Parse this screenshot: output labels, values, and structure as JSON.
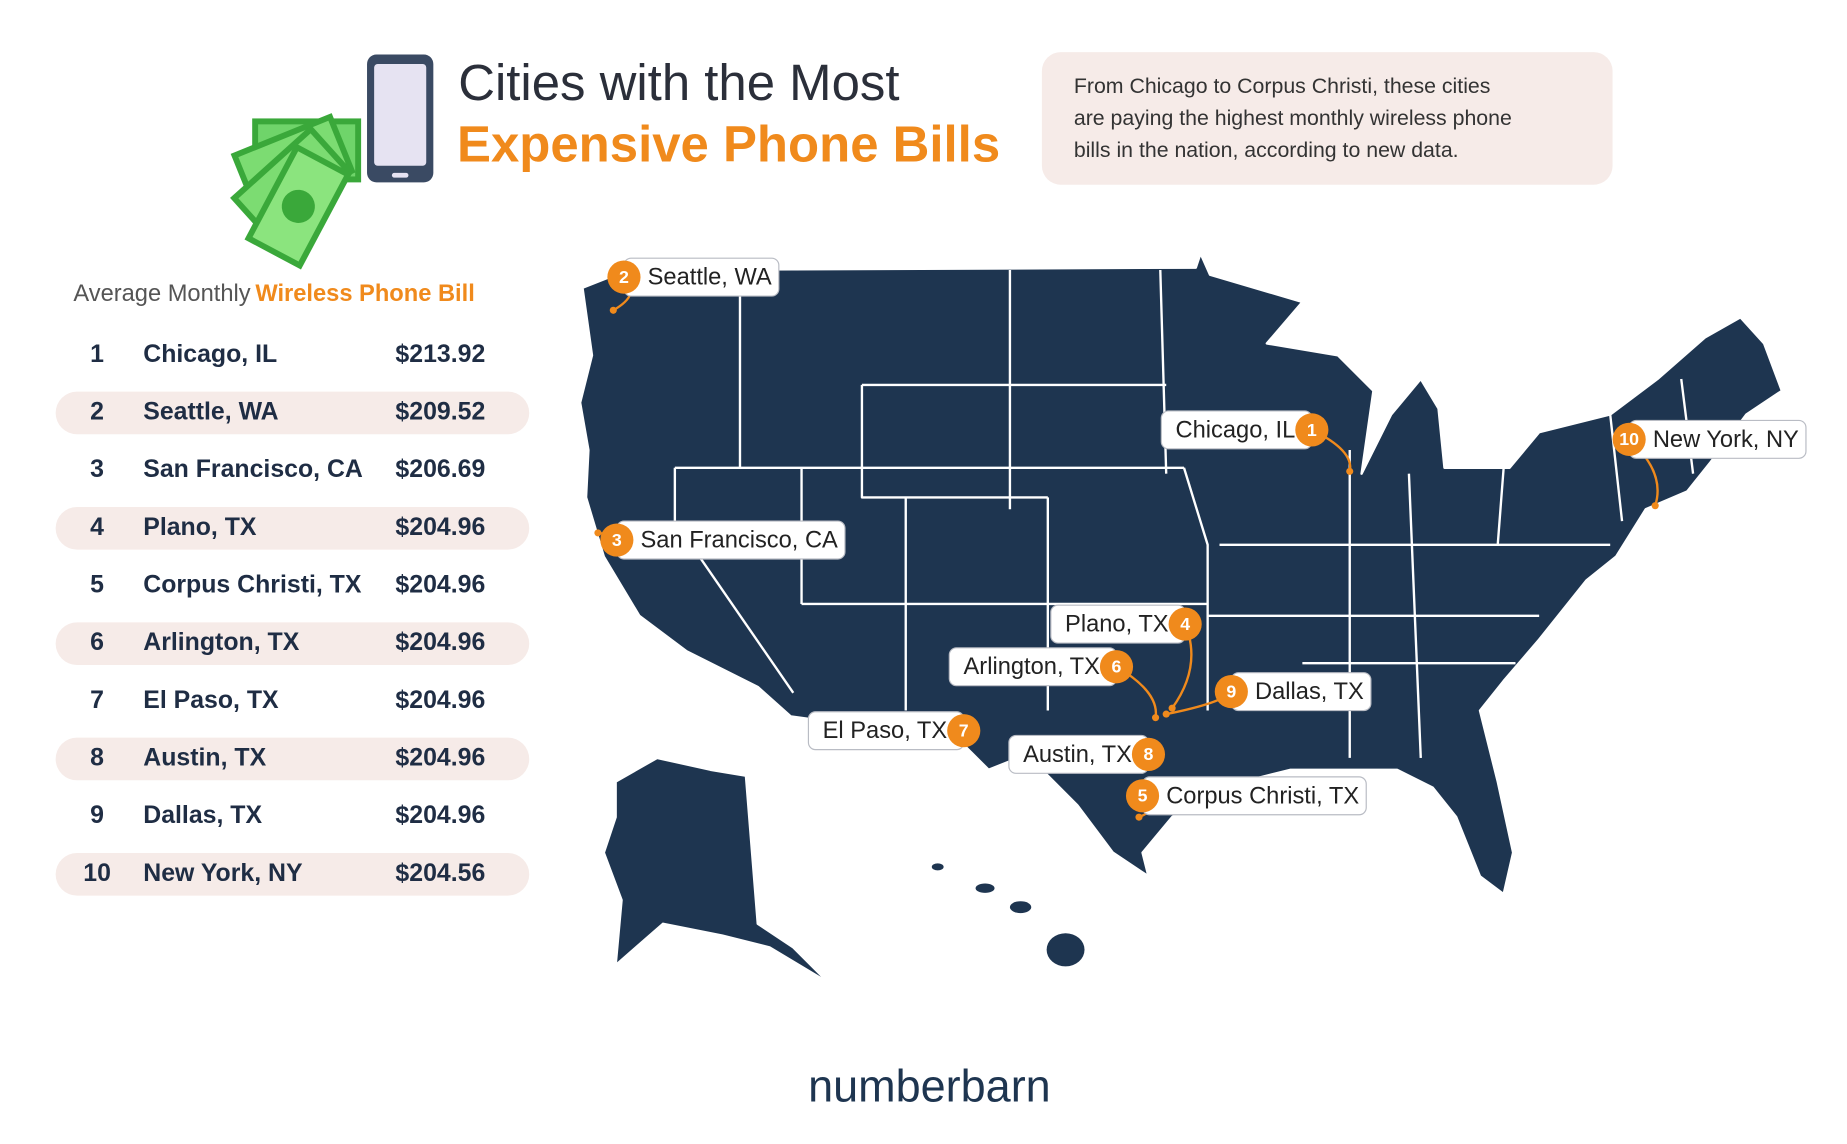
{
  "header": {
    "title_line1": "Cities with the Most",
    "title_line2": "Expensive Phone Bills",
    "description_lines": [
      "From Chicago to Corpus Christi, these cities",
      "are paying the highest monthly wireless phone",
      "bills in the nation, according to new data."
    ]
  },
  "table": {
    "subtitle_plain": "Average Monthly",
    "subtitle_highlight": "Wireless Phone Bill",
    "rows": [
      [
        "1",
        "Chicago, IL",
        "$213.92"
      ],
      [
        "2",
        "Seattle, WA",
        "$209.52"
      ],
      [
        "3",
        "San Francisco, CA",
        "$206.69"
      ],
      [
        "4",
        "Plano, TX",
        "$204.96"
      ],
      [
        "5",
        "Corpus Christi, TX",
        "$204.96"
      ],
      [
        "6",
        "Arlington, TX",
        "$204.96"
      ],
      [
        "7",
        "El Paso, TX",
        "$204.96"
      ],
      [
        "8",
        "Austin, TX",
        "$204.96"
      ],
      [
        "9",
        "Dallas, TX",
        "$204.96"
      ],
      [
        "10",
        "New York, NY",
        "$204.56"
      ]
    ]
  },
  "map": {
    "pins": [
      {
        "rank": "1",
        "label": "Chicago, IL"
      },
      {
        "rank": "2",
        "label": "Seattle, WA"
      },
      {
        "rank": "3",
        "label": "San Francisco, CA"
      },
      {
        "rank": "4",
        "label": "Plano, TX"
      },
      {
        "rank": "5",
        "label": "Corpus Christi, TX"
      },
      {
        "rank": "6",
        "label": "Arlington, TX"
      },
      {
        "rank": "7",
        "label": "El Paso, TX"
      },
      {
        "rank": "8",
        "label": "Austin, TX"
      },
      {
        "rank": "9",
        "label": "Dallas, TX"
      },
      {
        "rank": "10",
        "label": "New York, NY"
      }
    ]
  },
  "footer": {
    "brand": "numberbarn"
  }
}
